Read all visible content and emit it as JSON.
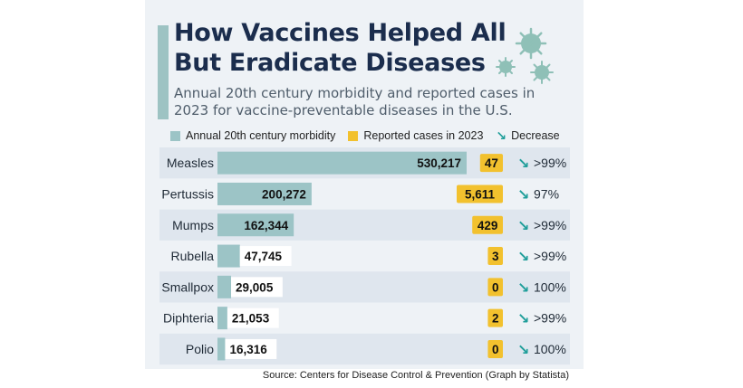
{
  "header": {
    "title": "How Vaccines Helped All But Eradicate Diseases",
    "subtitle": "Annual 20th century morbidity and reported cases in 2023 for vaccine-preventable diseases in the U.S."
  },
  "legend": {
    "morbidity_label": "Annual 20th century morbidity",
    "reported_label": "Reported cases in 2023",
    "decrease_label": "Decrease"
  },
  "colors": {
    "morbidity_bar": "#9cc4c6",
    "reported_badge": "#f2c12e",
    "decrease_arrow": "#1f9e9a",
    "title": "#1b2d4d",
    "row_stripe": "#dfe6ee",
    "virus": "#8fc0b7"
  },
  "icons": {
    "decrease": "arrow-down-right-icon",
    "decoration": "virus-icon"
  },
  "chart_data": {
    "type": "bar",
    "orientation": "horizontal",
    "title": "How Vaccines Helped All But Eradicate Diseases",
    "subtitle": "Annual 20th century morbidity and reported cases in 2023 for vaccine-preventable diseases in the U.S.",
    "categories": [
      "Measles",
      "Pertussis",
      "Mumps",
      "Rubella",
      "Smallpox",
      "Diphteria",
      "Polio"
    ],
    "series": [
      {
        "name": "Annual 20th century morbidity",
        "values": [
          530217,
          200272,
          162344,
          47745,
          29005,
          21053,
          16316
        ],
        "labels": [
          "530,217",
          "200,272",
          "162,344",
          "47,745",
          "29,005",
          "21,053",
          "16,316"
        ]
      },
      {
        "name": "Reported cases in 2023",
        "values": [
          47,
          5611,
          429,
          3,
          0,
          2,
          0
        ],
        "labels": [
          "47",
          "5,611",
          "429",
          "3",
          "0",
          "2",
          "0"
        ]
      }
    ],
    "decrease": [
      ">99%",
      "97%",
      ">99%",
      ">99%",
      "100%",
      ">99%",
      "100%"
    ],
    "xlim": [
      0,
      530217
    ],
    "grid": false,
    "legend_position": "top"
  },
  "footer": {
    "source": "Source: Centers for Disease Control  & Prevention (Graph by Statista)"
  }
}
